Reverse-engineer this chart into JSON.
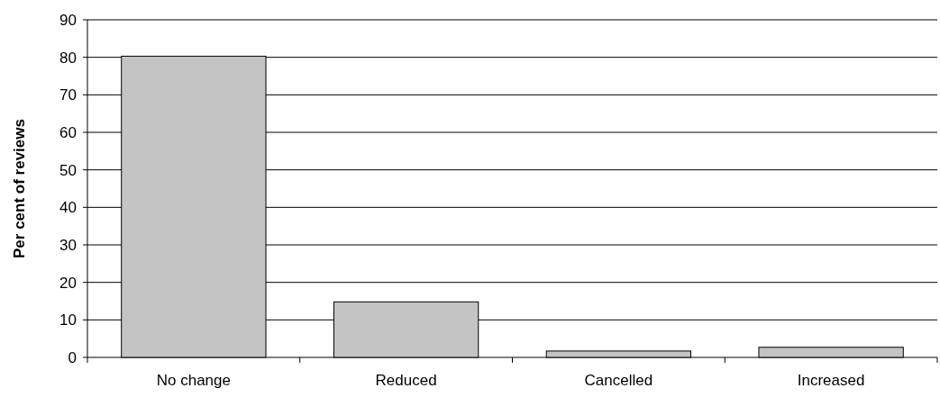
{
  "chart_data": {
    "type": "bar",
    "ylabel": "Per cent of reviews",
    "categories": [
      "No change",
      "Reduced",
      "Cancelled",
      "Increased"
    ],
    "values": [
      80.3,
      14.8,
      1.7,
      2.7
    ],
    "color": "#c4c4c4",
    "ylim": [
      0,
      90
    ],
    "yticks": [
      0,
      10,
      20,
      30,
      40,
      50,
      60,
      70,
      80,
      90
    ],
    "grid": "y"
  }
}
